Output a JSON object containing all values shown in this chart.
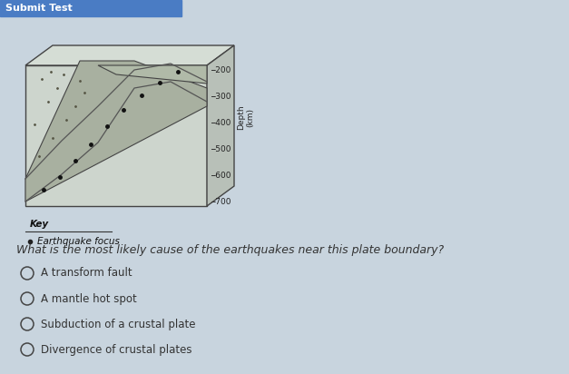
{
  "background_color": "#c8d4de",
  "header_color": "#4a7cc4",
  "header_text": "Submit Test",
  "header_text_color": "#ffffff",
  "question_text": "What is the most likely cause of the earthquakes near this plate boundary?",
  "answer_choices": [
    "A transform fault",
    "A mantle hot spot",
    "Subduction of a crustal plate",
    "Divergence of crustal plates"
  ],
  "key_title": "Key",
  "key_item": "Earthquake focus",
  "depth_labels": [
    "200",
    "300",
    "400",
    "500",
    "600",
    "700"
  ],
  "diagram_fill": "#d0d8d0",
  "diagram_border": "#444444",
  "subduct_color": "#a8b0a0",
  "upper_plate_color": "#b8c0b0",
  "depth_axis_label": "Depth\n(km)"
}
